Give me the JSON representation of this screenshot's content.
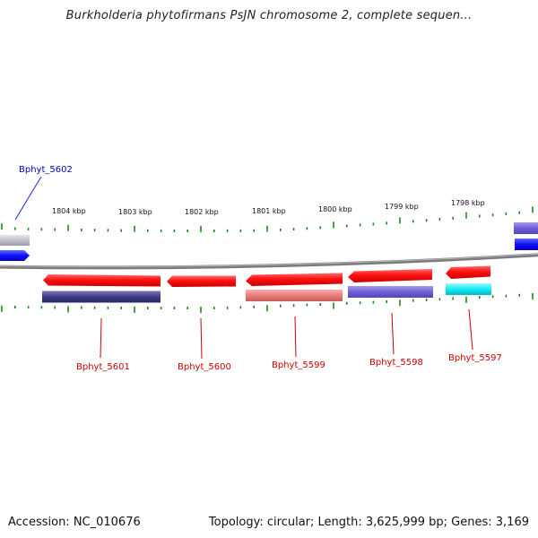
{
  "title": "Burkholderia phytofirmans PsJN chromosome 2, complete sequen...",
  "footer": {
    "accession": "Accession: NC_010676",
    "summary": "Topology: circular; Length: 3,625,999 bp; Genes: 3,169"
  },
  "colors": {
    "backbone": "#8a8a8a",
    "tick": "#1a8a1a",
    "forward_gene": "#ff1010",
    "locus_label_red": "#cc0000",
    "locus_label_blue": "#0000cc"
  },
  "scale_labels": [
    "1804 kbp",
    "1803 kbp",
    "1802 kbp",
    "1801 kbp",
    "1800 kbp",
    "1799 kbp",
    "1798 kbp"
  ],
  "genes": [
    {
      "locus": "Bphyt_5602",
      "label_color": "#0000cc"
    },
    {
      "locus": "Bphyt_5601",
      "label_color": "#cc0000"
    },
    {
      "locus": "Bphyt_5600",
      "label_color": "#cc0000"
    },
    {
      "locus": "Bphyt_5599",
      "label_color": "#cc0000"
    },
    {
      "locus": "Bphyt_5598",
      "label_color": "#cc0000"
    },
    {
      "locus": "Bphyt_5597",
      "label_color": "#cc0000"
    }
  ]
}
